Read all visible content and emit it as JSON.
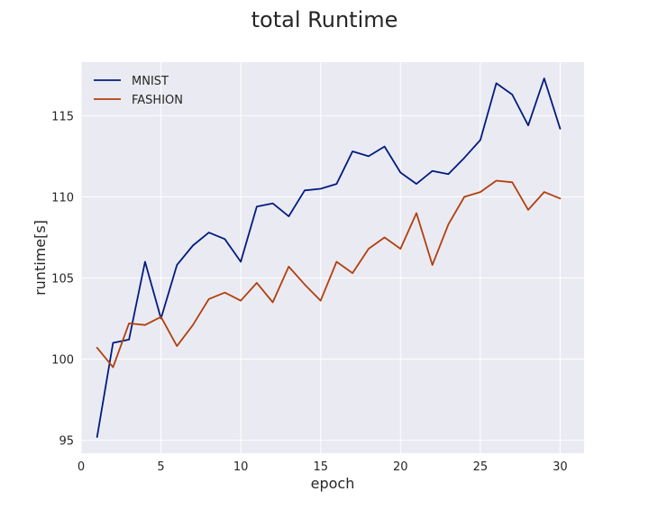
{
  "chart_data": {
    "type": "line",
    "title": "total Runtime",
    "xlabel": "epoch",
    "ylabel": "runtime[s]",
    "xlim": [
      0,
      31.5
    ],
    "ylim": [
      94.2,
      118.3
    ],
    "xticks": [
      0,
      5,
      10,
      15,
      20,
      25,
      30
    ],
    "yticks": [
      95,
      100,
      105,
      110,
      115
    ],
    "grid": true,
    "legend": "top-left",
    "x": [
      1,
      2,
      3,
      4,
      5,
      6,
      7,
      8,
      9,
      10,
      11,
      12,
      13,
      14,
      15,
      16,
      17,
      18,
      19,
      20,
      21,
      22,
      23,
      24,
      25,
      26,
      27,
      28,
      29,
      30
    ],
    "series": [
      {
        "name": "MNIST",
        "color": "#001c7f",
        "values": [
          95.2,
          101.0,
          101.2,
          106.0,
          102.5,
          105.8,
          107.0,
          107.8,
          107.4,
          106.0,
          109.4,
          109.6,
          108.8,
          110.4,
          110.5,
          110.8,
          112.8,
          112.5,
          113.1,
          111.5,
          110.8,
          111.6,
          111.4,
          112.4,
          113.5,
          117.0,
          116.3,
          114.4,
          117.3,
          114.2
        ]
      },
      {
        "name": "FASHION",
        "color": "#b1400d",
        "values": [
          100.7,
          99.5,
          102.2,
          102.1,
          102.6,
          100.8,
          102.1,
          103.7,
          104.1,
          103.6,
          104.7,
          103.5,
          105.7,
          104.6,
          103.6,
          106.0,
          105.3,
          106.8,
          107.5,
          106.8,
          109.0,
          105.8,
          108.3,
          110.0,
          110.3,
          111.0,
          110.9,
          109.2,
          110.3,
          109.9
        ]
      }
    ]
  }
}
